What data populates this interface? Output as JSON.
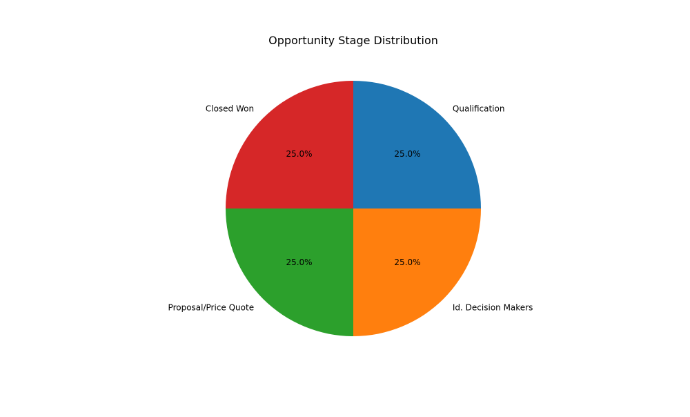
{
  "chart_data": {
    "type": "pie",
    "title": "Opportunity Stage Distribution",
    "start_angle_deg": 90,
    "direction": "clockwise",
    "categories": [
      "Qualification",
      "Id. Decision Makers",
      "Proposal/Price Quote",
      "Closed Won"
    ],
    "values": [
      25.0,
      25.0,
      25.0,
      25.0
    ],
    "percent_labels": [
      "25.0%",
      "25.0%",
      "25.0%",
      "25.0%"
    ],
    "colors": [
      "#1f77b4",
      "#ff7f0e",
      "#2ca02c",
      "#d62728"
    ]
  }
}
